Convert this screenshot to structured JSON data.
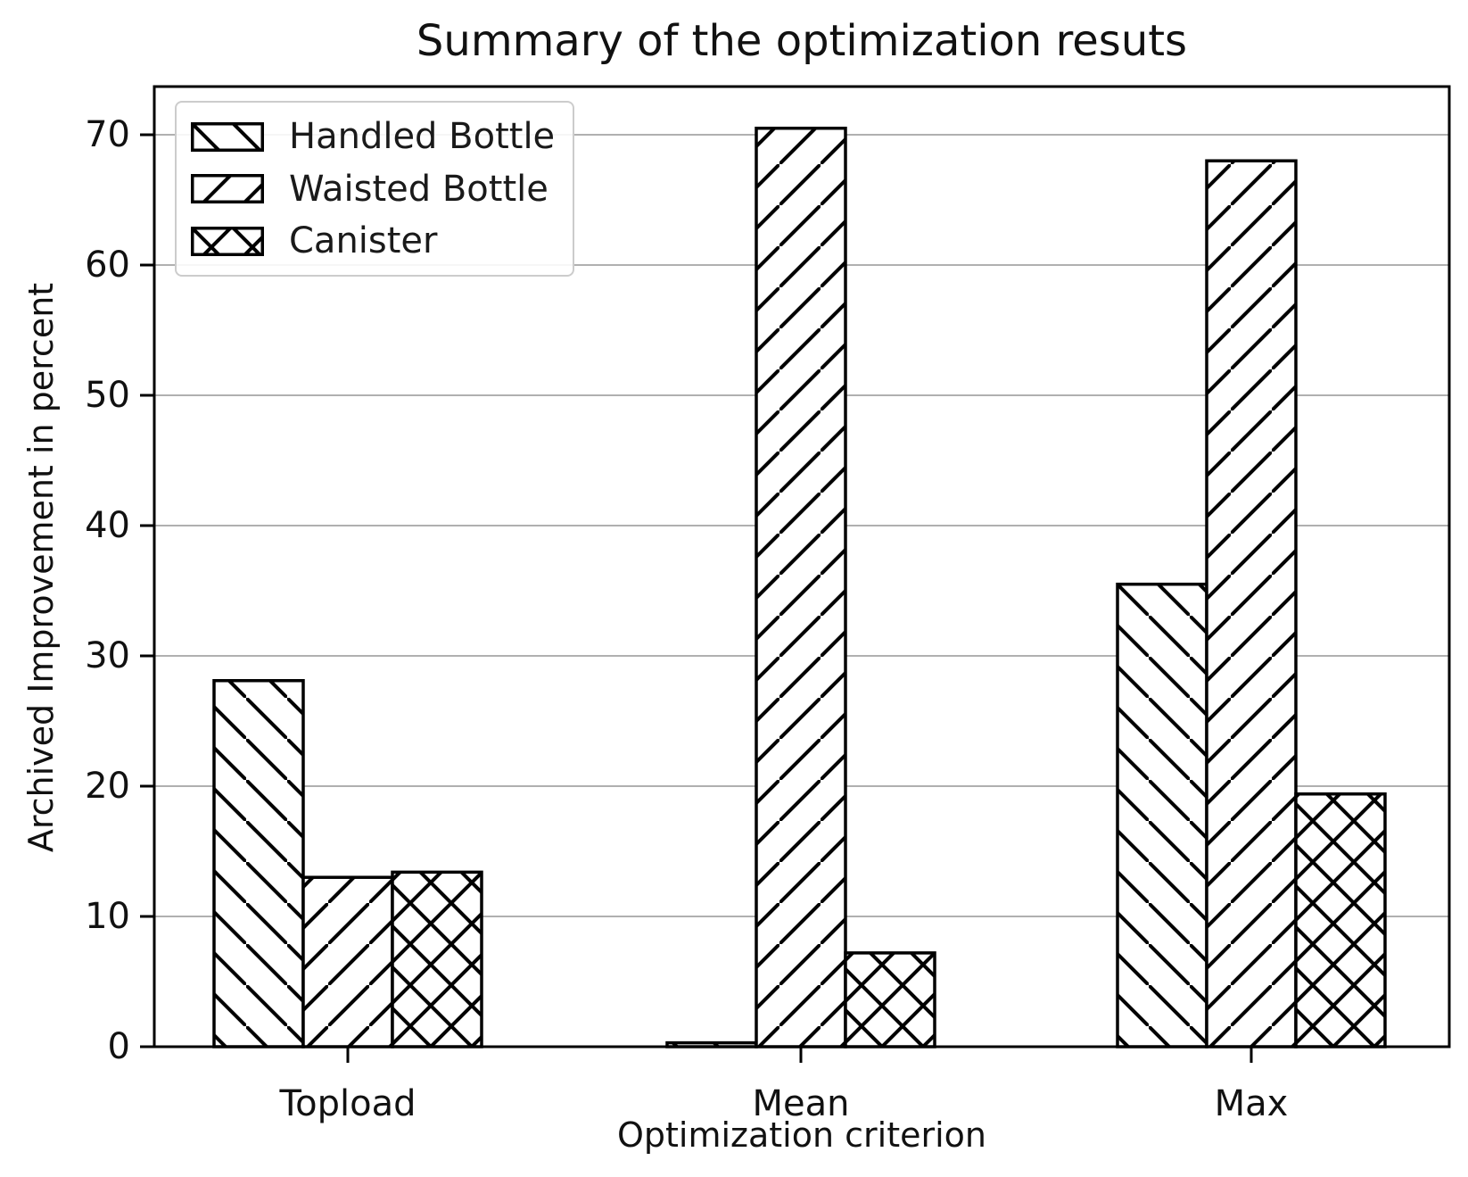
{
  "chart_data": {
    "type": "bar",
    "title": "Summary of the optimization resuts",
    "xlabel": "Optimization criterion",
    "ylabel": "Archived Improvement in percent",
    "categories": [
      "Topload",
      "Mean",
      "Max"
    ],
    "series": [
      {
        "name": "Handled Bottle",
        "hatch": "backslash",
        "values": [
          28.1,
          0.3,
          35.5
        ]
      },
      {
        "name": "Waisted Bottle",
        "hatch": "slash",
        "values": [
          13.0,
          70.5,
          68.0
        ]
      },
      {
        "name": "Canister",
        "hatch": "cross",
        "values": [
          13.4,
          7.2,
          19.4
        ]
      }
    ],
    "ylim": [
      0,
      73.7
    ],
    "yticks": [
      0,
      10,
      20,
      30,
      40,
      50,
      60,
      70
    ],
    "grid": "horizontal",
    "legend_position": "upper-left",
    "colors": {
      "bar_fill": "#ffffff",
      "bar_edge": "#000000",
      "grid": "#b0b0b0",
      "spine": "#000000",
      "text": "#111111",
      "legend_border": "#cccccc"
    }
  }
}
